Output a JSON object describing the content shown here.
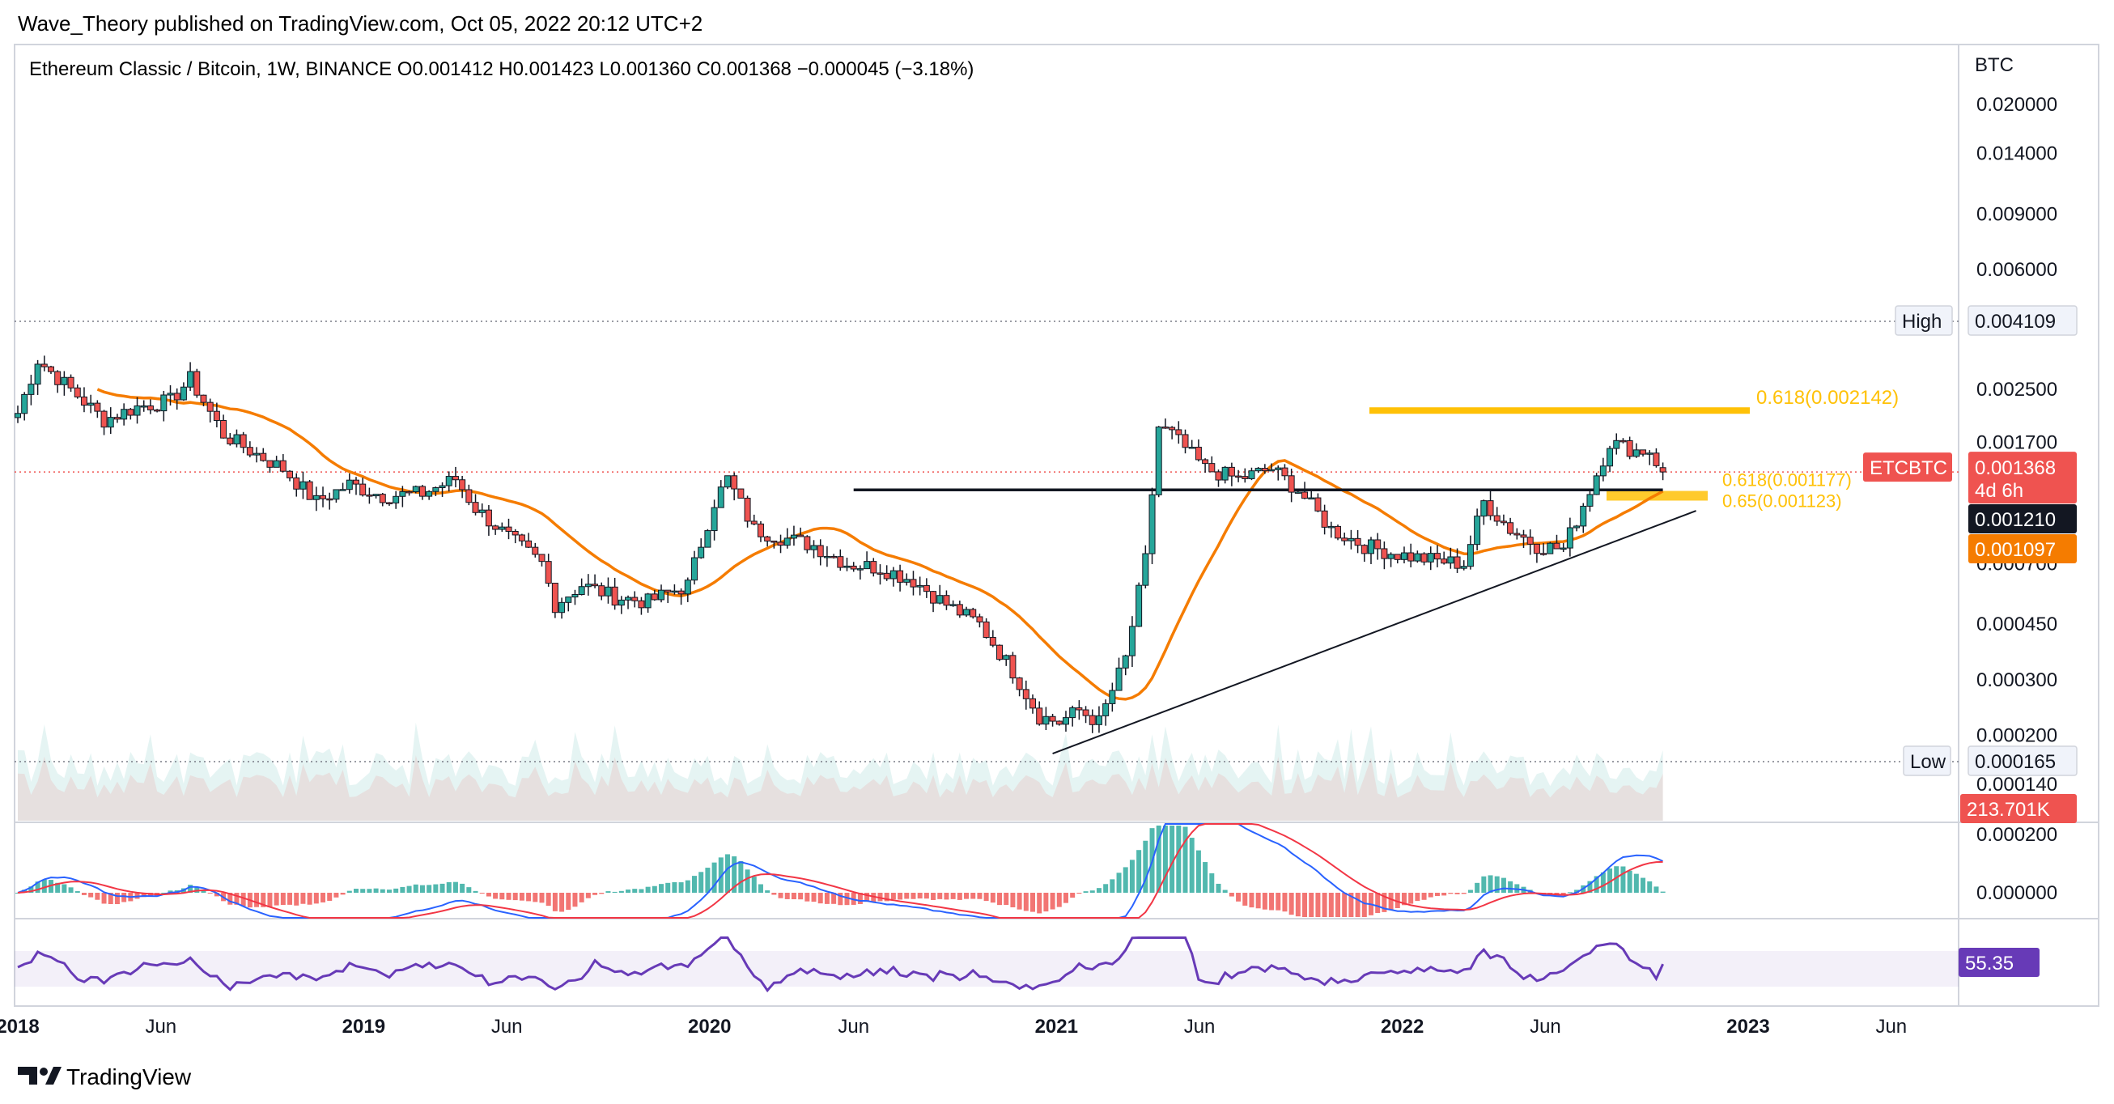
{
  "header": {
    "publisher_line": "Wave_Theory published on TradingView.com, Oct 05, 2022 20:12 UTC+2",
    "legend": "Ethereum Classic / Bitcoin, 1W, BINANCE  O0.001412  H0.001423  L0.001360  C0.001368  −0.000045 (−3.18%)"
  },
  "footer": {
    "brand": "TradingView"
  },
  "colors": {
    "up": "#26a69a",
    "down": "#ef5350",
    "ma_orange": "#f57c00",
    "ma_black": "#131722",
    "fib": "#ffc107",
    "rsi": "#673ab7",
    "macd_blue": "#2962ff",
    "macd_red": "#f23645",
    "high_low_line": "#787b86"
  },
  "badges": {
    "high_label": "High",
    "high_value": "0.004109",
    "low_label": "Low",
    "low_value": "0.000165",
    "symbol": "ETCBTC",
    "last_price": "0.001368",
    "countdown": "4d 6h",
    "ma_black_value": "0.001210",
    "ma_orange_value": "0.001097",
    "volume_value": "213.701K",
    "rsi_value": "55.35"
  },
  "chart_data": {
    "type": "candlestick",
    "symbol": "Ethereum Classic / Bitcoin",
    "interval": "1W",
    "exchange": "BINANCE",
    "price_axis_unit": "BTC",
    "price_scale": "log",
    "x_ticks": [
      "2018",
      "Jun",
      "2019",
      "Jun",
      "2020",
      "Jun",
      "2021",
      "Jun",
      "2022",
      "Jun",
      "2023",
      "Jun"
    ],
    "x_tick_bold": [
      true,
      false,
      true,
      false,
      true,
      false,
      true,
      false,
      true,
      false,
      true,
      false
    ],
    "y_ticks": [
      "0.020000",
      "0.014000",
      "0.009000",
      "0.006000",
      "0.002500",
      "0.001700",
      "0.000700",
      "0.000450",
      "0.000300",
      "0.000200",
      "0.000140"
    ],
    "ohlc_last": {
      "open": 0.001412,
      "high": 0.001423,
      "low": 0.00136,
      "close": 0.001368,
      "change": -4.5e-05,
      "change_pct": -3.18
    },
    "range_high": 0.004109,
    "range_low": 0.000165,
    "price_path": [
      [
        "2018-01-01",
        0.0021
      ],
      [
        "2018-01-22",
        0.0031
      ],
      [
        "2018-02-26",
        0.0025
      ],
      [
        "2018-04-02",
        0.002
      ],
      [
        "2018-05-07",
        0.0022
      ],
      [
        "2018-06-11",
        0.0023
      ],
      [
        "2018-07-02",
        0.0027
      ],
      [
        "2018-08-06",
        0.0018
      ],
      [
        "2018-09-03",
        0.0016
      ],
      [
        "2018-10-08",
        0.0014
      ],
      [
        "2018-11-12",
        0.0011
      ],
      [
        "2018-12-17",
        0.00125
      ],
      [
        "2019-01-21",
        0.00115
      ],
      [
        "2019-03-04",
        0.00117
      ],
      [
        "2019-04-08",
        0.0013
      ],
      [
        "2019-04-29",
        0.00105
      ],
      [
        "2019-06-03",
        0.00085
      ],
      [
        "2019-07-08",
        0.0007
      ],
      [
        "2019-07-22",
        0.00052
      ],
      [
        "2019-08-19",
        0.0006
      ],
      [
        "2019-09-23",
        0.00055
      ],
      [
        "2019-10-28",
        0.00053
      ],
      [
        "2019-12-09",
        0.0006
      ],
      [
        "2020-01-06",
        0.0011
      ],
      [
        "2020-01-20",
        0.0013
      ],
      [
        "2020-02-17",
        0.0009
      ],
      [
        "2020-03-16",
        0.00085
      ],
      [
        "2020-04-20",
        0.0008
      ],
      [
        "2020-05-25",
        0.0007
      ],
      [
        "2020-06-29",
        0.00068
      ],
      [
        "2020-08-03",
        0.00062
      ],
      [
        "2020-09-07",
        0.00052
      ],
      [
        "2020-10-12",
        0.00045
      ],
      [
        "2020-11-16",
        0.00032
      ],
      [
        "2020-12-14",
        0.00023
      ],
      [
        "2021-01-04",
        0.00022
      ],
      [
        "2021-01-25",
        0.00024
      ],
      [
        "2021-02-15",
        0.00022
      ],
      [
        "2021-03-15",
        0.00035
      ],
      [
        "2021-04-05",
        0.00072
      ],
      [
        "2021-04-19",
        0.0019
      ],
      [
        "2021-05-03",
        0.0018
      ],
      [
        "2021-06-07",
        0.0014
      ],
      [
        "2021-07-12",
        0.0013
      ],
      [
        "2021-08-16",
        0.0014
      ],
      [
        "2021-09-13",
        0.0012
      ],
      [
        "2021-10-18",
        0.0009
      ],
      [
        "2021-11-22",
        0.0008
      ],
      [
        "2021-12-27",
        0.00075
      ],
      [
        "2022-01-31",
        0.00072
      ],
      [
        "2022-03-07",
        0.0007
      ],
      [
        "2022-03-28",
        0.0011
      ],
      [
        "2022-04-25",
        0.0009
      ],
      [
        "2022-05-23",
        0.0008
      ],
      [
        "2022-06-20",
        0.00078
      ],
      [
        "2022-07-18",
        0.0012
      ],
      [
        "2022-08-08",
        0.0017
      ],
      [
        "2022-09-05",
        0.0016
      ],
      [
        "2022-09-19",
        0.0016
      ],
      [
        "2022-10-03",
        0.001368
      ]
    ],
    "moving_averages": [
      {
        "color": "#f57c00",
        "last": 0.001097
      },
      {
        "color": "#131722",
        "last": 0.00121
      }
    ],
    "fib_levels": [
      {
        "label": "0.618(0.002142)",
        "value": 0.002142
      },
      {
        "label": "0.618(0.001177)",
        "value": 0.001177
      },
      {
        "label": "0.65(0.001123)",
        "value": 0.001123
      }
    ],
    "trendline": {
      "from": [
        "2020-12-28",
        0.000175
      ],
      "to": [
        "2022-11-07",
        0.00103
      ]
    },
    "volume_last": "213.701K",
    "macd_ticks": [
      "0.000200",
      "0.000000"
    ],
    "rsi_last": 55.35,
    "grid": false,
    "legend_position": "top-left"
  }
}
